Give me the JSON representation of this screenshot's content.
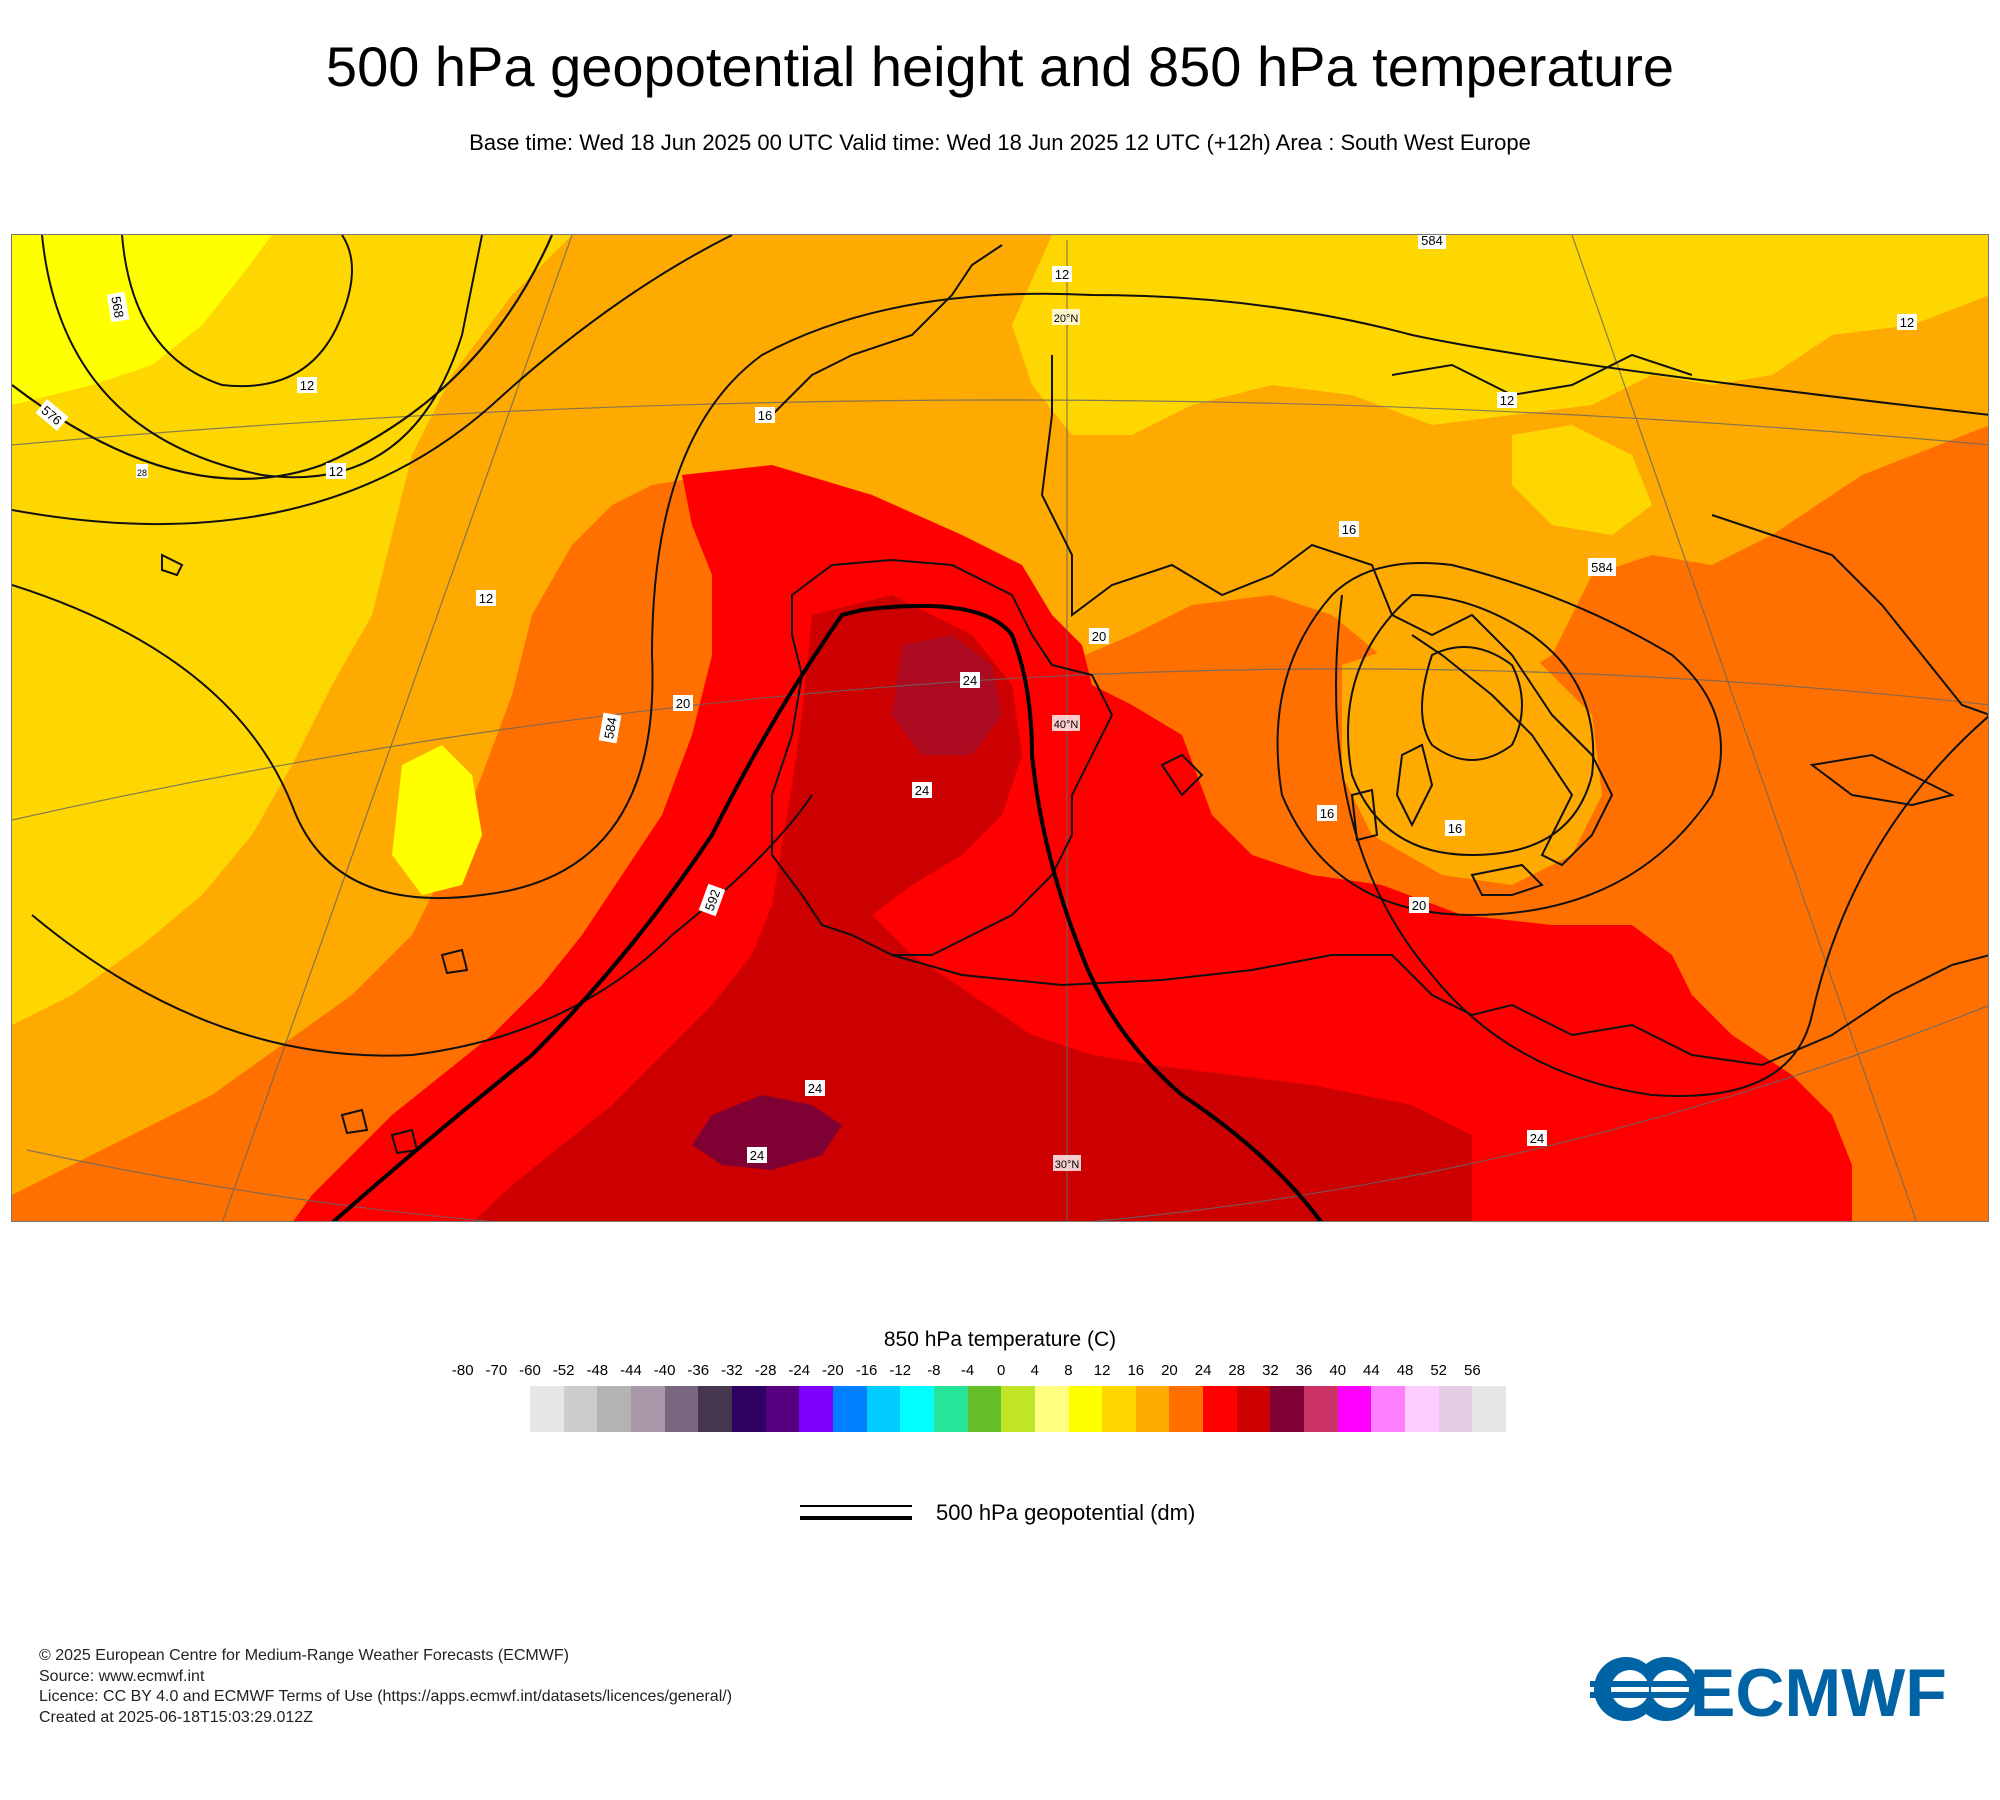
{
  "header": {
    "title": "500 hPa geopotential height and 850 hPa temperature",
    "subtitle": "Base time: Wed 18 Jun 2025 00 UTC Valid time: Wed 18 Jun 2025 12 UTC (+12h) Area : South West Europe"
  },
  "map": {
    "area": "South West Europe",
    "field_colors": {
      "t12_16": "#FFD700",
      "t16_20": "#FFAA00",
      "t20_24": "#FF7000",
      "t24_28": "#FF0000",
      "t28_32": "#CC0000",
      "t32_36": "#7F0033",
      "t8_12": "#FFFF00"
    },
    "contour_labels": {
      "g568": "568",
      "g576": "576",
      "g584a": "584",
      "g584b": "584",
      "g584c": "584",
      "g592": "592",
      "t12a": "12",
      "t12b": "12",
      "t12c": "12",
      "t12d": "12",
      "t12e": "12",
      "t12f": "12",
      "t16a": "16",
      "t16b": "16",
      "t16c": "16",
      "t16d": "16",
      "t20a": "20",
      "t20b": "20",
      "t20c": "20",
      "t24a": "24",
      "t24b": "24",
      "t24c": "24",
      "t24d": "24",
      "t24e": "24",
      "t28": "28",
      "grid20a": "20°N",
      "grid40": "40°N",
      "grid30": "30°N"
    }
  },
  "legend": {
    "title": "850 hPa temperature (C)",
    "ticks": [
      "-80",
      "-70",
      "-60",
      "-52",
      "-48",
      "-44",
      "-40",
      "-36",
      "-32",
      "-28",
      "-24",
      "-20",
      "-16",
      "-12",
      "-8",
      "-4",
      "0",
      "4",
      "8",
      "12",
      "16",
      "20",
      "24",
      "28",
      "32",
      "36",
      "40",
      "44",
      "48",
      "52",
      "56"
    ],
    "colors": [
      "#E6E6E6",
      "#CCCCCC",
      "#B3B3B3",
      "#A998AA",
      "#7A677F",
      "#463650",
      "#2D0061",
      "#560080",
      "#7F00FF",
      "#0080FF",
      "#00CCFF",
      "#00FFFF",
      "#26E599",
      "#66BF26",
      "#BFE526",
      "#FFFF80",
      "#FFFF00",
      "#FFD700",
      "#FFAA00",
      "#FF7000",
      "#FF0000",
      "#CC0000",
      "#7F0033",
      "#CC3366",
      "#FF00FF",
      "#FF80FF",
      "#FFCCFF",
      "#E5CCE5",
      "#E6E6E6"
    ],
    "line_label": "500 hPa geopotential (dm)"
  },
  "footer": {
    "line1": "© 2025 European Centre for Medium-Range Weather Forecasts (ECMWF)",
    "line2": "Source: www.ecmwf.int",
    "line3": "Licence: CC BY 4.0 and ECMWF Terms of Use (https://apps.ecmwf.int/datasets/licences/general/)",
    "line4": "Created at 2025-06-18T15:03:29.012Z"
  },
  "logo": {
    "text": "ECMWF",
    "color": "#0063A5",
    "icon": "ecmwf-logo-icon"
  }
}
